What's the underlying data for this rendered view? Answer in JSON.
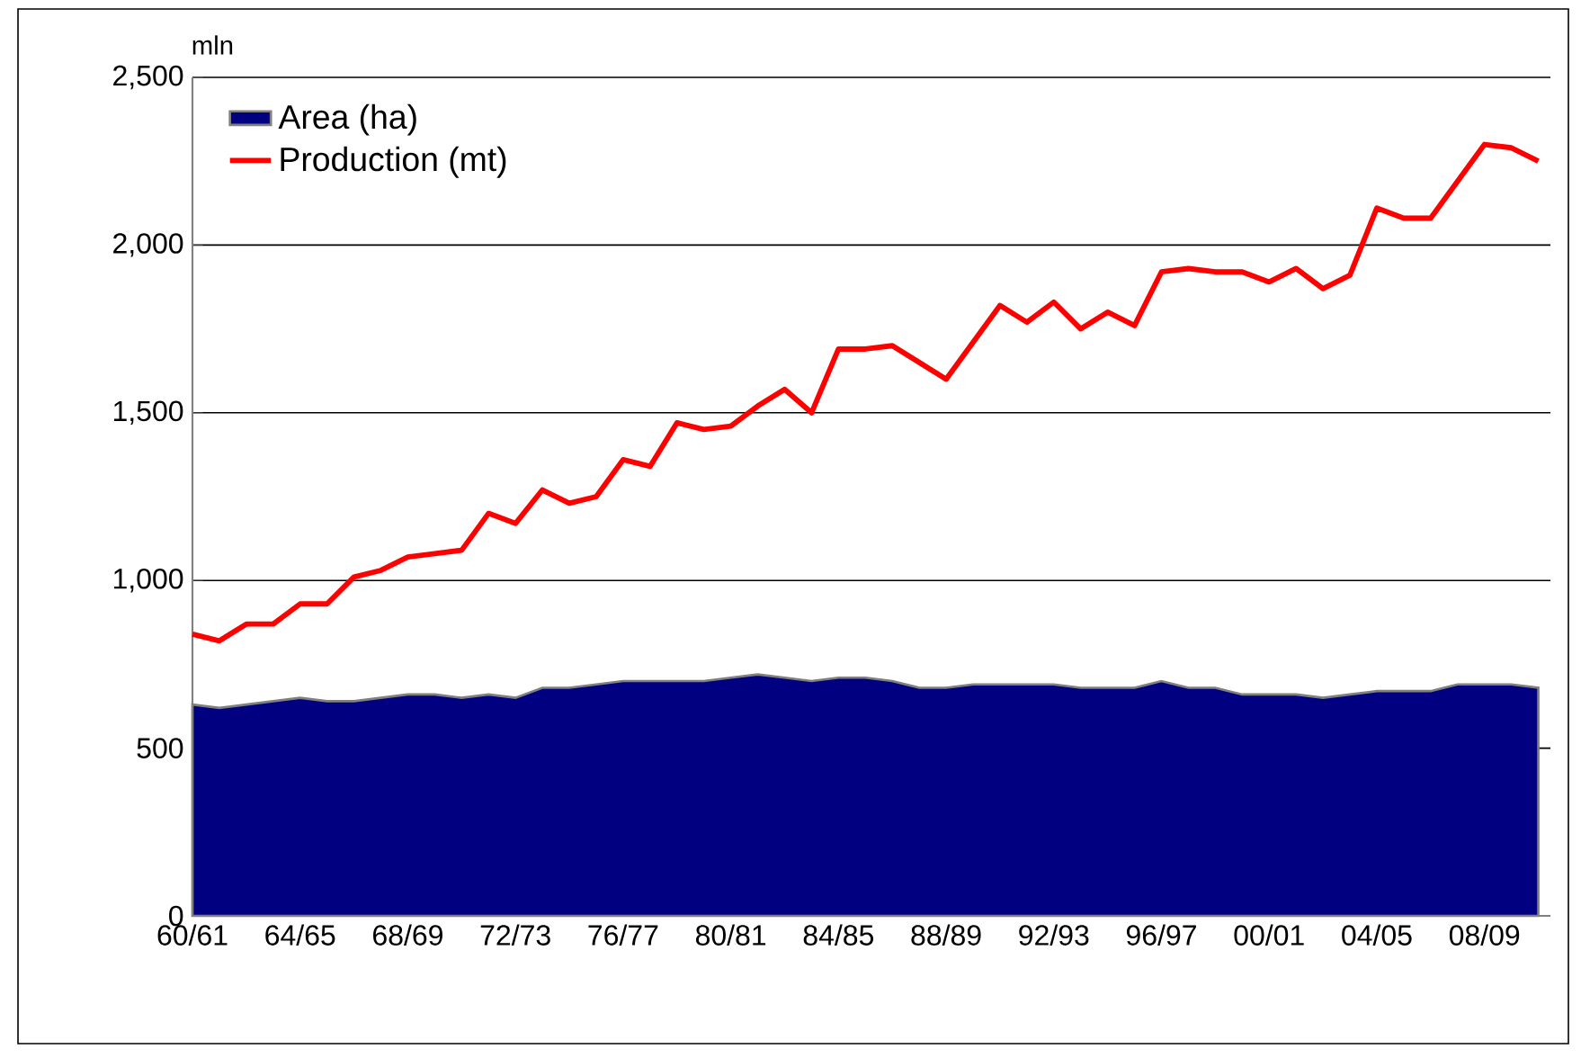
{
  "chart_data": {
    "type": "line",
    "ylabel": "mln",
    "categories": [
      "60/61",
      null,
      null,
      null,
      "64/65",
      null,
      null,
      null,
      "68/69",
      null,
      null,
      null,
      "72/73",
      null,
      null,
      null,
      "76/77",
      null,
      null,
      null,
      "80/81",
      null,
      null,
      null,
      "84/85",
      null,
      null,
      null,
      "88/89",
      null,
      null,
      null,
      "92/93",
      null,
      null,
      null,
      "96/97",
      null,
      null,
      null,
      "00/01",
      null,
      null,
      null,
      "04/05",
      null,
      null,
      null,
      "08/09",
      null,
      null
    ],
    "series": [
      {
        "name": "Area (ha)",
        "type": "area",
        "color": "#000080",
        "values": [
          630,
          620,
          630,
          640,
          650,
          640,
          640,
          650,
          660,
          660,
          650,
          660,
          650,
          680,
          680,
          690,
          700,
          700,
          700,
          700,
          710,
          720,
          710,
          700,
          710,
          710,
          700,
          680,
          680,
          690,
          690,
          690,
          690,
          680,
          680,
          680,
          700,
          680,
          680,
          660,
          660,
          660,
          650,
          660,
          670,
          670,
          670,
          690,
          690,
          690,
          680
        ]
      },
      {
        "name": "Production (mt)",
        "color": "#ff0000",
        "values": [
          840,
          820,
          870,
          870,
          930,
          930,
          1010,
          1030,
          1070,
          1080,
          1090,
          1200,
          1170,
          1270,
          1230,
          1250,
          1360,
          1340,
          1470,
          1450,
          1460,
          1520,
          1570,
          1500,
          1690,
          1690,
          1700,
          1650,
          1600,
          1710,
          1820,
          1770,
          1830,
          1750,
          1800,
          1760,
          1920,
          1930,
          1920,
          1920,
          1890,
          1930,
          1870,
          1910,
          2110,
          2080,
          2080,
          2190,
          2300,
          2290,
          2250
        ]
      }
    ],
    "ylim": [
      0,
      2500
    ],
    "yticks": [
      0,
      500,
      {
        "value": 1000,
        "label": "1,000"
      },
      {
        "value": 1500,
        "label": "1,500"
      },
      {
        "value": 2000,
        "label": "2,000"
      },
      {
        "value": 2500,
        "label": "2,500"
      }
    ],
    "grid": "y",
    "legend": "top left"
  }
}
